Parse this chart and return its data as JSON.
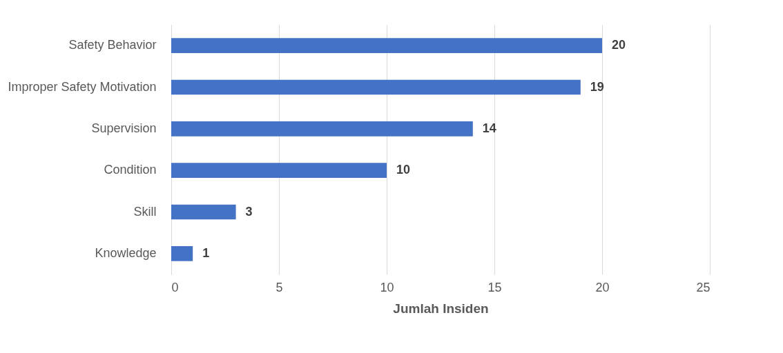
{
  "chart_data": {
    "type": "bar",
    "orientation": "horizontal",
    "categories": [
      "Safety Behavior",
      "Improper Safety Motivation",
      "Supervision",
      "Condition",
      "Skill",
      "Knowledge"
    ],
    "values": [
      20,
      19,
      14,
      10,
      3,
      1
    ],
    "color": "#4472c4",
    "xlabel": "Jumlah Insiden",
    "xlim": [
      0,
      25
    ],
    "xticks": [
      0,
      5,
      10,
      15,
      20,
      25
    ],
    "grid": "x",
    "data_labels": true
  }
}
